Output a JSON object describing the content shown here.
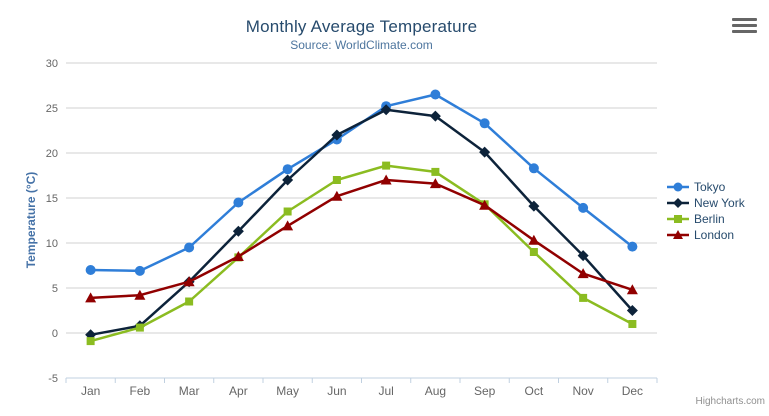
{
  "chart_data": {
    "type": "line",
    "title": "Monthly Average Temperature",
    "subtitle": "Source: WorldClimate.com",
    "xlabel": "",
    "ylabel": "Temperature (°C)",
    "categories": [
      "Jan",
      "Feb",
      "Mar",
      "Apr",
      "May",
      "Jun",
      "Jul",
      "Aug",
      "Sep",
      "Oct",
      "Nov",
      "Dec"
    ],
    "ylim": [
      -5,
      30
    ],
    "ytick_interval": 5,
    "grid": true,
    "legend_position": "right-middle",
    "series": [
      {
        "name": "Tokyo",
        "color": "#2f7ed8",
        "marker": "circle",
        "values": [
          7.0,
          6.9,
          9.5,
          14.5,
          18.2,
          21.5,
          25.2,
          26.5,
          23.3,
          18.3,
          13.9,
          9.6
        ]
      },
      {
        "name": "New York",
        "color": "#0d233a",
        "marker": "diamond",
        "values": [
          -0.2,
          0.8,
          5.7,
          11.3,
          17.0,
          22.0,
          24.8,
          24.1,
          20.1,
          14.1,
          8.6,
          2.5
        ]
      },
      {
        "name": "Berlin",
        "color": "#8bbc21",
        "marker": "square",
        "values": [
          -0.9,
          0.6,
          3.5,
          8.4,
          13.5,
          17.0,
          18.6,
          17.9,
          14.3,
          9.0,
          3.9,
          1.0
        ]
      },
      {
        "name": "London",
        "color": "#910000",
        "marker": "triangle",
        "values": [
          3.9,
          4.2,
          5.7,
          8.5,
          11.9,
          15.2,
          17.0,
          16.6,
          14.2,
          10.3,
          6.6,
          4.8
        ]
      }
    ],
    "style": {
      "grid_color": "#d0d0d0",
      "axis_line_color": "#c0d0e0",
      "tick_label_color": "#666666",
      "title_color": "#274b6d",
      "subtitle_color": "#4d759e",
      "yaxis_title_color": "#4572a7"
    }
  },
  "export_menu": {
    "icon": "hamburger-menu-icon"
  },
  "credits": {
    "label": "Highcharts.com"
  }
}
